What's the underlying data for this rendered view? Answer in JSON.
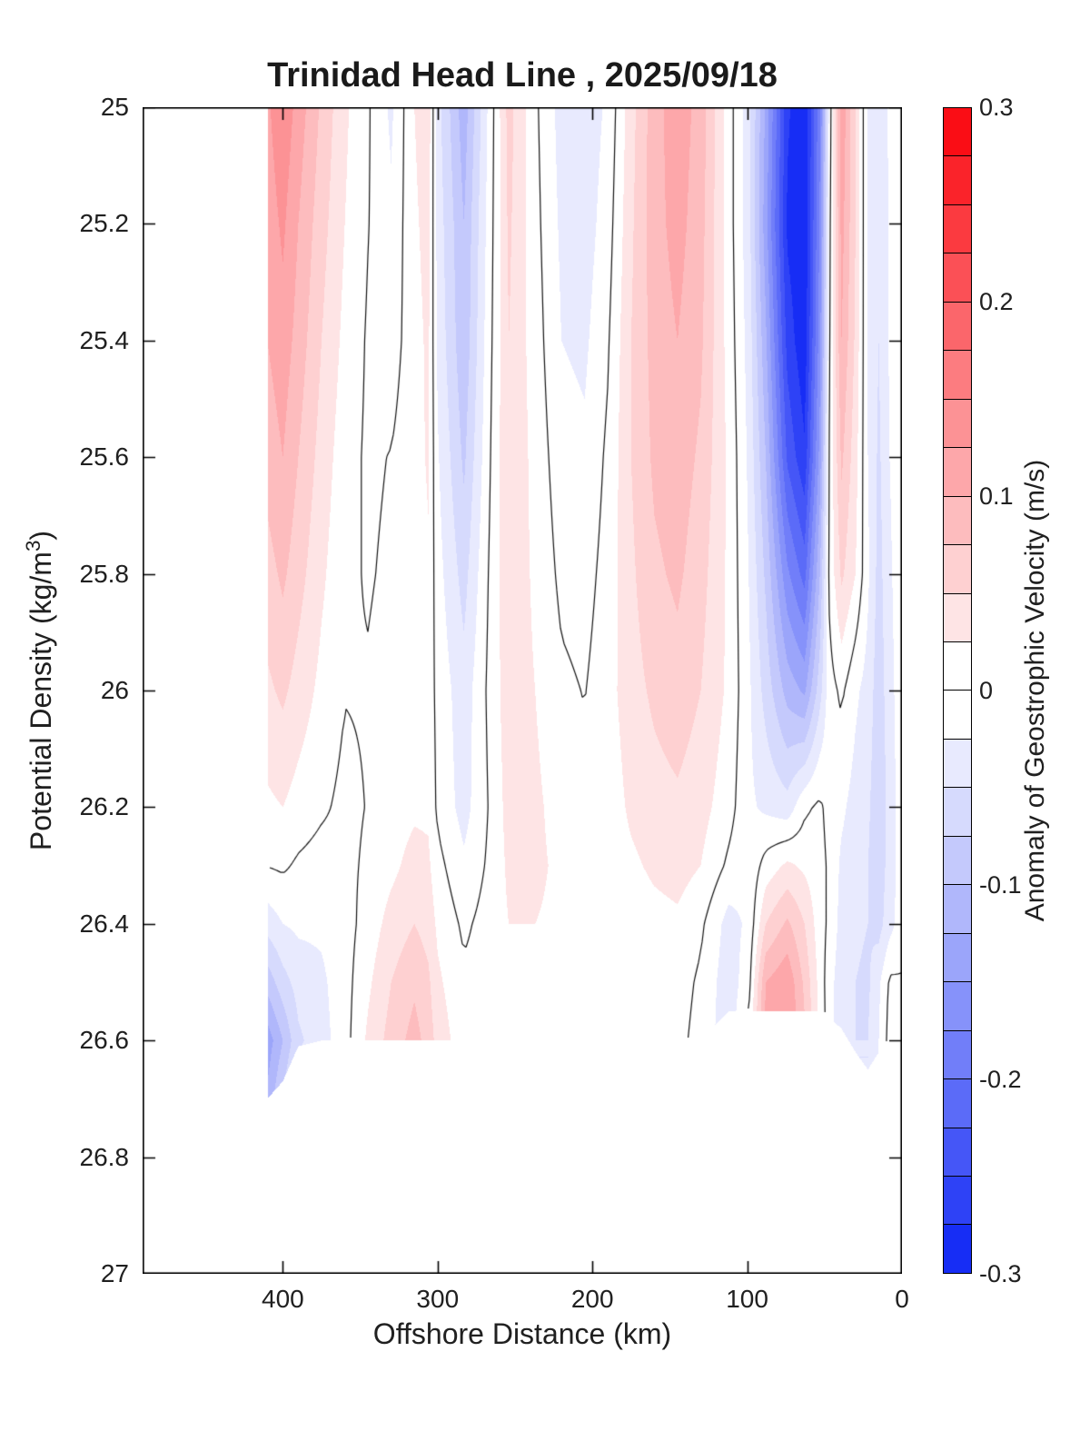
{
  "chart_data": {
    "type": "filled_contour",
    "title": "Trinidad Head Line , 2025/09/18",
    "xlabel": "Offshore Distance (km)",
    "ylabel": "Potential Density (kg/m³)",
    "ylabel_parts": {
      "prefix": "Potential Density (kg/m",
      "sup": "3",
      "suffix": ")"
    },
    "colorbar_label": "Anomaly of Geostrophic Velocity (m/s)",
    "x_axis": {
      "min": 0,
      "max": 490.6,
      "reversed": true,
      "tick_values": [
        400,
        300,
        200,
        100,
        0
      ],
      "tick_labels": [
        "400",
        "300",
        "200",
        "100",
        "0"
      ]
    },
    "y_axis": {
      "min": 25,
      "max": 27,
      "increasing_downward": true,
      "tick_values": [
        25,
        25.2,
        25.4,
        25.6,
        25.8,
        26,
        26.2,
        26.4,
        26.6,
        26.8,
        27
      ],
      "tick_labels": [
        "25",
        "25.2",
        "25.4",
        "25.6",
        "25.8",
        "26",
        "26.2",
        "26.4",
        "26.6",
        "26.8",
        "27"
      ]
    },
    "colorbar": {
      "min": -0.3,
      "max": 0.3,
      "level_step": 0.025,
      "tick_values": [
        0.3,
        0.2,
        0.1,
        0,
        -0.1,
        -0.2,
        -0.3
      ],
      "tick_labels": [
        "0.3",
        "0.2",
        "0.1",
        "0",
        "-0.1",
        "-0.2",
        "-0.3"
      ],
      "positive_color": "#fa020a",
      "negative_color": "#0c23f5",
      "zero_color": "#ffffff"
    },
    "contour_line_levels": [
      0
    ],
    "contour_line_color": "#141414",
    "grid": {
      "x_km": [
        410,
        400,
        390,
        375,
        360,
        345,
        330,
        315,
        306,
        300,
        283,
        267,
        254,
        237,
        220,
        205,
        190,
        175,
        160,
        145,
        130,
        112,
        99,
        88,
        74,
        63,
        53,
        47,
        39,
        30,
        22,
        15,
        8,
        0
      ],
      "sigma_theta": [
        25.0,
        25.2,
        25.4,
        25.6,
        25.8,
        26.0,
        26.2,
        26.3,
        26.4,
        26.5,
        26.6,
        26.7
      ],
      "anomaly_m_per_s": [
        [
          0.12,
          0.145,
          0.115,
          0.07,
          0.03,
          0.003,
          -0.03,
          0.025,
          0.042,
          -0.04,
          -0.115,
          -0.02,
          0.06,
          0.005,
          -0.035,
          -0.042,
          -0.02,
          0.04,
          0.09,
          0.115,
          0.09,
          0.012,
          -0.04,
          -0.13,
          -0.27,
          -0.3,
          -0.18,
          -0.02,
          0.12,
          0.05,
          -0.03,
          -0.045,
          -0.02,
          -0.002
        ],
        [
          0.11,
          0.13,
          0.1,
          0.06,
          0.025,
          0.001,
          -0.02,
          0.02,
          0.035,
          -0.035,
          -0.1,
          -0.015,
          0.055,
          0.008,
          -0.03,
          -0.038,
          -0.012,
          0.045,
          0.09,
          0.11,
          0.085,
          0.012,
          -0.04,
          -0.14,
          -0.28,
          -0.3,
          -0.17,
          -0.01,
          0.11,
          0.05,
          -0.03,
          -0.05,
          -0.022,
          -0.003
        ],
        [
          0.1,
          0.115,
          0.09,
          0.05,
          0.018,
          -0.003,
          -0.012,
          0.015,
          0.03,
          -0.03,
          -0.095,
          -0.01,
          0.05,
          0.012,
          -0.025,
          -0.03,
          -0.003,
          0.05,
          0.085,
          0.1,
          0.08,
          0.015,
          -0.035,
          -0.12,
          -0.26,
          -0.295,
          -0.16,
          -0.005,
          0.1,
          0.045,
          -0.028,
          -0.05,
          -0.022,
          -0.004
        ],
        [
          0.085,
          0.1,
          0.075,
          0.04,
          0.01,
          -0.004,
          0.001,
          0.015,
          0.028,
          -0.022,
          -0.08,
          -0.005,
          0.05,
          0.016,
          -0.015,
          -0.02,
          0.005,
          0.05,
          0.08,
          0.09,
          0.07,
          0.02,
          -0.03,
          -0.1,
          -0.23,
          -0.27,
          -0.14,
          0.001,
          0.08,
          0.035,
          -0.025,
          -0.055,
          -0.025,
          -0.005
        ],
        [
          0.065,
          0.08,
          0.06,
          0.03,
          0.005,
          -0.002,
          0.004,
          0.012,
          0.022,
          -0.015,
          -0.06,
          0.001,
          0.045,
          0.02,
          -0.006,
          -0.01,
          0.01,
          0.045,
          0.07,
          0.08,
          0.06,
          0.02,
          -0.025,
          -0.08,
          -0.17,
          -0.21,
          -0.1,
          0.005,
          0.055,
          0.025,
          -0.02,
          -0.06,
          -0.03,
          -0.006
        ],
        [
          0.045,
          0.055,
          0.04,
          0.018,
          0.001,
          0.002,
          0.008,
          0.012,
          0.015,
          -0.008,
          -0.04,
          0.005,
          0.04,
          0.025,
          0.005,
          -0.001,
          0.015,
          0.04,
          0.055,
          0.065,
          0.05,
          0.02,
          -0.02,
          -0.06,
          -0.11,
          -0.13,
          -0.06,
          -0.01,
          0.005,
          -0.02,
          -0.035,
          -0.065,
          -0.035,
          -0.008
        ],
        [
          0.02,
          0.025,
          0.015,
          0.004,
          -0.006,
          0.001,
          0.012,
          0.02,
          0.02,
          -0.005,
          -0.035,
          0.001,
          0.035,
          0.03,
          0.015,
          0.005,
          0.01,
          0.03,
          0.04,
          0.045,
          0.035,
          0.01,
          -0.02,
          -0.03,
          -0.04,
          -0.005,
          0.005,
          -0.01,
          -0.02,
          -0.035,
          -0.045,
          -0.07,
          -0.04,
          -0.01
        ],
        [
          0.001,
          0.004,
          -0.004,
          -0.01,
          -0.006,
          0.004,
          0.018,
          0.035,
          0.03,
          0.008,
          -0.02,
          0.004,
          0.03,
          0.03,
          0.02,
          0.01,
          0.008,
          0.02,
          0.03,
          0.035,
          0.025,
          -0.005,
          -0.02,
          0.01,
          0.03,
          0.02,
          0.01,
          -0.005,
          -0.03,
          -0.04,
          -0.05,
          -0.065,
          -0.04,
          -0.01
        ],
        [
          -0.04,
          -0.025,
          -0.02,
          -0.02,
          -0.01,
          0.01,
          0.035,
          0.05,
          0.04,
          0.02,
          -0.005,
          0.01,
          0.025,
          0.025,
          0.02,
          0.012,
          0.006,
          0.01,
          0.016,
          0.02,
          0.005,
          -0.035,
          -0.02,
          0.05,
          0.08,
          0.05,
          0.01,
          -0.005,
          -0.035,
          -0.045,
          -0.05,
          -0.06,
          -0.035,
          -0.01
        ],
        [
          -0.09,
          -0.06,
          -0.04,
          -0.03,
          -0.01,
          0.02,
          0.05,
          0.07,
          0.055,
          0.03,
          0.005,
          0.012,
          0.02,
          0.02,
          0.015,
          0.01,
          0.004,
          0.006,
          0.01,
          0.012,
          -0.005,
          -0.04,
          -0.01,
          0.1,
          0.12,
          0.07,
          0.015,
          -0.015,
          -0.04,
          -0.05,
          -0.055,
          -0.03,
          0.005,
          0.002
        ],
        [
          -0.14,
          -0.1,
          -0.055,
          -0.035,
          -0.01,
          0.03,
          0.06,
          0.085,
          0.065,
          0.04,
          0.01,
          0.012,
          0.016,
          0.015,
          0.01,
          0.006,
          0.001,
          0.004,
          0.006,
          0.008,
          -0.01,
          -0.04,
          0.01,
          0.11,
          0.13,
          0.08,
          0.02,
          -0.015,
          -0.04,
          -0.05,
          -0.05,
          -0.025,
          0.01,
          0.003
        ],
        [
          -0.12,
          -0.07,
          -0.03,
          -0.02,
          -0.005,
          0.03,
          0.06,
          0.085,
          0.065,
          0.04,
          0.01,
          0.012,
          0.016,
          0.015,
          0.01,
          0.006,
          0.001,
          0.004,
          0.006,
          0.008,
          -0.01,
          -0.04,
          0.01,
          0.11,
          0.13,
          0.08,
          0.02,
          -0.015,
          -0.04,
          -0.05,
          -0.05,
          -0.025,
          0.01,
          0.003
        ]
      ],
      "bottom_data_limit_sigma": [
        26.7,
        26.67,
        26.61,
        26.6,
        26.6,
        26.6,
        26.6,
        26.6,
        26.6,
        26.6,
        26.6,
        26.6,
        26.6,
        26.6,
        26.6,
        26.6,
        26.6,
        26.6,
        26.6,
        26.6,
        26.6,
        26.55,
        26.55,
        26.55,
        26.55,
        26.55,
        26.55,
        26.56,
        26.58,
        26.62,
        26.65,
        26.62,
        26.6,
        26.6
      ],
      "data_x_extent_km": [
        410,
        0
      ]
    }
  }
}
